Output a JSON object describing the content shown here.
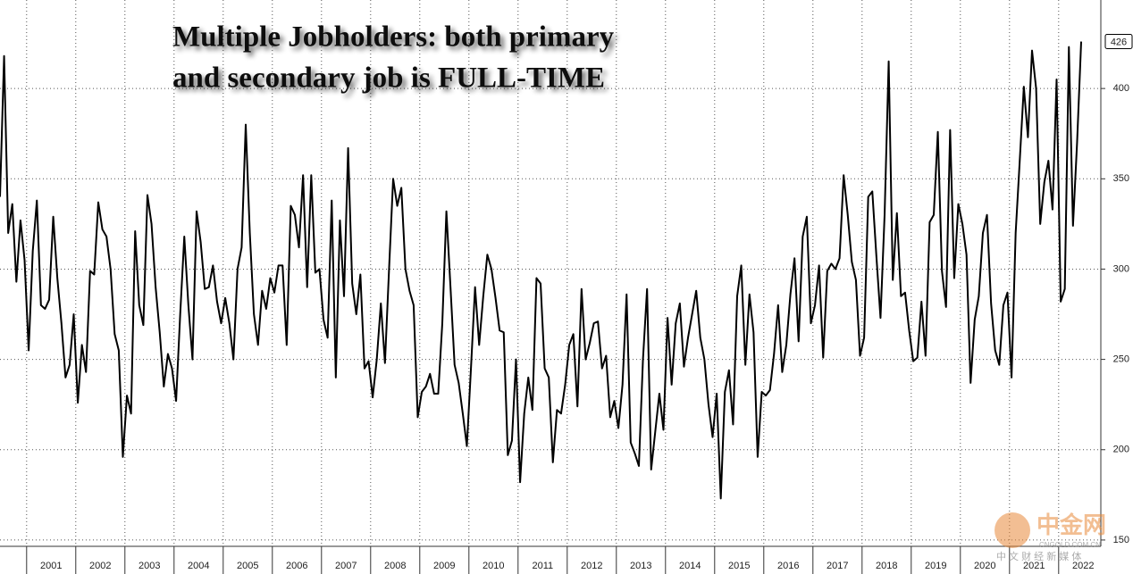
{
  "chart_data": {
    "type": "line",
    "title": [
      "Multiple Jobholders: both primary",
      "and secondary job is FULL-TIME"
    ],
    "x": [
      null,
      null,
      null,
      null,
      null,
      null,
      null,
      null,
      null,
      null,
      null,
      null,
      "2001",
      null,
      null,
      null,
      null,
      null,
      null,
      null,
      null,
      null,
      null,
      null,
      "2002",
      null,
      null,
      null,
      null,
      null,
      null,
      null,
      null,
      null,
      null,
      null,
      "2003",
      null,
      null,
      null,
      null,
      null,
      null,
      null,
      null,
      null,
      null,
      null,
      "2004",
      null,
      null,
      null,
      null,
      null,
      null,
      null,
      null,
      null,
      null,
      null,
      "2005",
      null,
      null,
      null,
      null,
      null,
      null,
      null,
      null,
      null,
      null,
      null,
      "2006",
      null,
      null,
      null,
      null,
      null,
      null,
      null,
      null,
      null,
      null,
      null,
      "2007",
      null,
      null,
      null,
      null,
      null,
      null,
      null,
      null,
      null,
      null,
      null,
      "2008",
      null,
      null,
      null,
      null,
      null,
      null,
      null,
      null,
      null,
      null,
      null,
      "2009",
      null,
      null,
      null,
      null,
      null,
      null,
      null,
      null,
      null,
      null,
      null,
      "2010",
      null,
      null,
      null,
      null,
      null,
      null,
      null,
      null,
      null,
      null,
      null,
      "2011",
      null,
      null,
      null,
      null,
      null,
      null,
      null,
      null,
      null,
      null,
      null,
      "2012",
      null,
      null,
      null,
      null,
      null,
      null,
      null,
      null,
      null,
      null,
      null,
      "2013",
      null,
      null,
      null,
      null,
      null,
      null,
      null,
      null,
      null,
      null,
      null,
      "2014",
      null,
      null,
      null,
      null,
      null,
      null,
      null,
      null,
      null,
      null,
      null,
      "2015",
      null,
      null,
      null,
      null,
      null,
      null,
      null,
      null,
      null,
      null,
      null,
      "2016",
      null,
      null,
      null,
      null,
      null,
      null,
      null,
      null,
      null,
      null,
      null,
      "2017",
      null,
      null,
      null,
      null,
      null,
      null,
      null,
      null,
      null,
      null,
      null,
      "2018",
      null,
      null,
      null,
      null,
      null,
      null,
      null,
      null,
      null,
      null,
      null,
      "2019",
      null,
      null,
      null,
      null,
      null,
      null,
      null,
      null,
      null,
      null,
      null,
      "2020",
      null,
      null,
      null,
      null,
      null,
      null,
      null,
      null,
      null,
      null,
      null,
      "2021",
      null,
      null,
      null,
      null,
      null,
      null,
      null,
      null,
      null,
      null,
      null,
      "2022"
    ],
    "values": [
      340,
      418,
      320,
      336,
      293,
      327,
      305,
      255,
      310,
      338,
      280,
      278,
      283,
      329,
      295,
      270,
      240,
      247,
      275,
      226,
      258,
      243,
      299,
      297,
      337,
      322,
      318,
      300,
      264,
      255,
      196,
      230,
      220,
      321,
      280,
      269,
      341,
      325,
      290,
      265,
      235,
      253,
      245,
      227,
      275,
      318,
      280,
      250,
      332,
      315,
      289,
      290,
      302,
      282,
      270,
      284,
      270,
      250,
      300,
      312,
      380,
      320,
      275,
      258,
      288,
      278,
      295,
      287,
      302,
      302,
      258,
      335,
      330,
      312,
      352,
      290,
      352,
      298,
      300,
      272,
      262,
      338,
      240,
      327,
      285,
      367,
      292,
      275,
      297,
      245,
      249,
      229,
      250,
      281,
      248,
      300,
      350,
      335,
      345,
      300,
      288,
      280,
      218,
      232,
      235,
      242,
      231,
      231,
      270,
      332,
      290,
      247,
      237,
      220,
      202,
      245,
      290,
      258,
      285,
      308,
      300,
      284,
      266,
      265,
      197,
      205,
      250,
      182,
      220,
      240,
      222,
      295,
      292,
      245,
      240,
      193,
      222,
      220,
      236,
      258,
      264,
      224,
      289,
      250,
      259,
      270,
      271,
      245,
      252,
      218,
      227,
      212,
      236,
      286,
      204,
      198,
      191,
      250,
      289,
      189,
      210,
      231,
      211,
      273,
      236,
      270,
      281,
      246,
      262,
      275,
      288,
      262,
      250,
      225,
      207,
      231,
      173,
      232,
      244,
      214,
      285,
      302,
      247,
      286,
      265,
      196,
      232,
      230,
      233,
      253,
      280,
      243,
      258,
      286,
      306,
      260,
      318,
      329,
      270,
      280,
      302,
      251,
      299,
      303,
      300,
      306,
      352,
      330,
      304,
      294,
      252,
      262,
      340,
      343,
      307,
      273,
      330,
      415,
      294,
      331,
      285,
      287,
      266,
      249,
      251,
      282,
      252,
      326,
      330,
      376,
      299,
      279,
      377,
      295,
      336,
      325,
      308,
      237,
      272,
      285,
      320,
      330,
      281,
      255,
      247,
      280,
      287,
      240,
      320,
      360,
      401,
      373,
      421,
      400,
      325,
      348,
      360,
      333,
      405,
      282,
      289,
      423,
      324,
      370,
      426
    ],
    "color": "#000000",
    "ylim": [
      146.5,
      449
    ],
    "yticks": [
      150,
      200,
      250,
      300,
      350,
      400
    ],
    "grid": true,
    "watermark": [
      "中金网",
      "CNGOLD.COM.CN",
      "中 文 财 经 新 媒 体"
    ]
  }
}
